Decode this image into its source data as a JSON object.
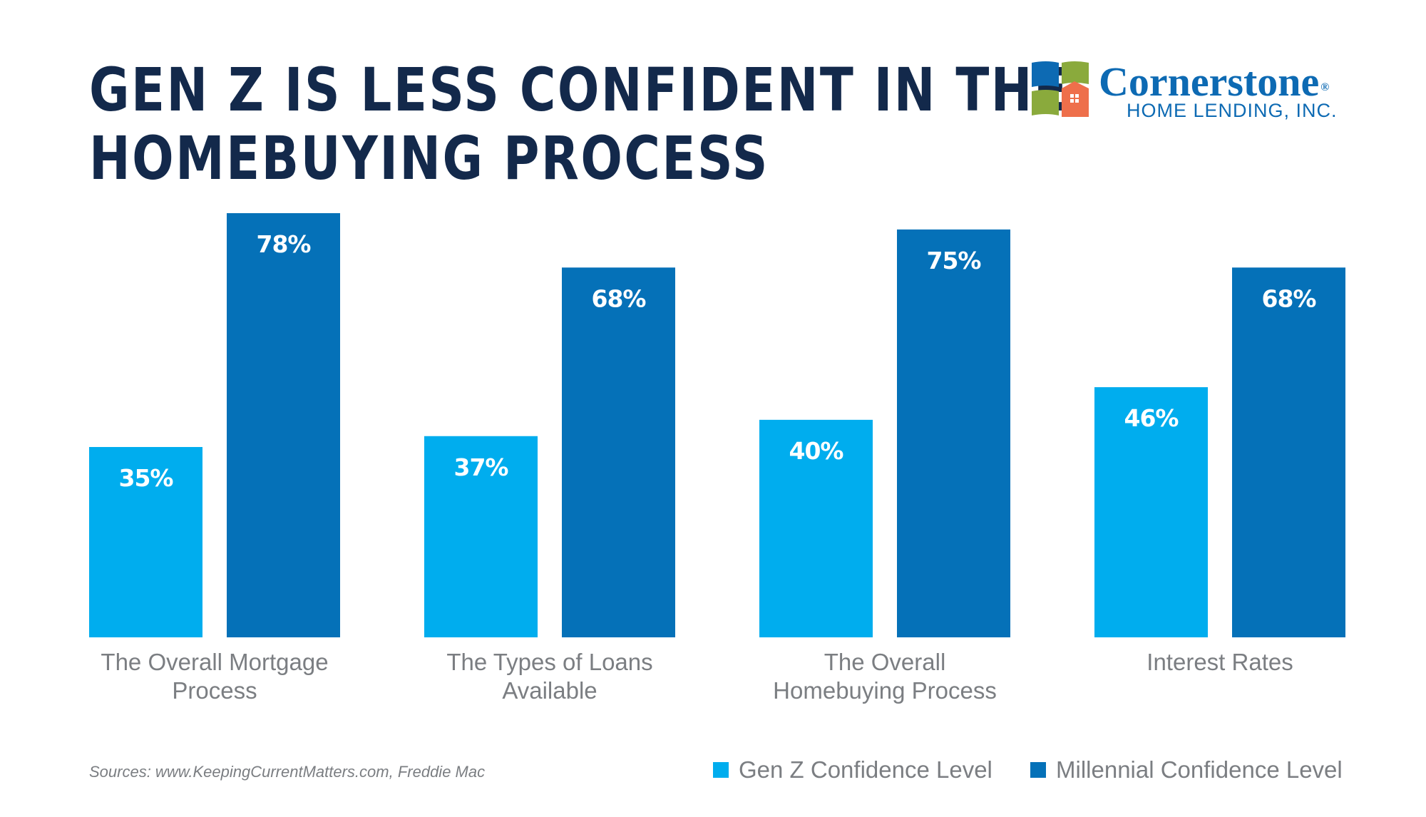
{
  "title": {
    "line1": "GEN Z IS LESS CONFIDENT IN THE",
    "line2": "HOMEBUYING PROCESS"
  },
  "logo": {
    "name": "Cornerstone",
    "registered": "®",
    "subtitle": "HOME LENDING, INC."
  },
  "source": "Sources: www.KeepingCurrentMatters.com, Freddie Mac",
  "colors": {
    "title": "#13294b",
    "gen_z": "#00adee",
    "millennial": "#0571b8",
    "category_label": "#7b7e82",
    "brand_blue": "#0d6ab3",
    "brand_green": "#8aaa3c",
    "brand_orange": "#ee6f4b"
  },
  "chart_data": {
    "type": "bar",
    "categories": [
      [
        "The Overall Mortgage",
        "Process"
      ],
      [
        "The Types of Loans",
        "Available"
      ],
      [
        "The Overall",
        "Homebuying Process"
      ],
      [
        "Interest Rates"
      ]
    ],
    "series": [
      {
        "name": "Gen Z Confidence Level",
        "values": [
          35,
          37,
          40,
          46
        ],
        "labels": [
          "35%",
          "37%",
          "40%",
          "46%"
        ]
      },
      {
        "name": "Millennial Confidence Level",
        "values": [
          78,
          68,
          75,
          68
        ],
        "labels": [
          "78%",
          "68%",
          "75%",
          "68%"
        ]
      }
    ],
    "ylim": [
      0,
      78
    ],
    "grid": false,
    "legend": "bottom-right"
  }
}
